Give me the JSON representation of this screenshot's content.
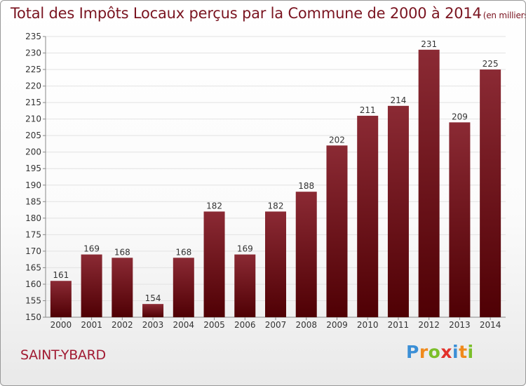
{
  "title": "Total des Impôts Locaux perçus par la Commune de 2000 à 2014",
  "title_unit": "(en milliers d'€)",
  "commune": "SAINT-YBARD",
  "logo": {
    "letters": [
      "P",
      "r",
      "o",
      "x",
      "i",
      "t",
      "i"
    ],
    "colors": [
      "#3b8fd6",
      "#f08a1c",
      "#7bbf2a",
      "#e2312b",
      "#3b8fd6",
      "#f08a1c",
      "#7bbf2a"
    ]
  },
  "colors": {
    "bar_top": "#8b2a34",
    "bar_bottom": "#4f0004",
    "title": "#7a1420",
    "commune": "#a11a32"
  },
  "chart_data": {
    "type": "bar",
    "categories": [
      "2000",
      "2001",
      "2002",
      "2003",
      "2004",
      "2005",
      "2006",
      "2007",
      "2008",
      "2009",
      "2010",
      "2011",
      "2012",
      "2013",
      "2014"
    ],
    "values": [
      161,
      169,
      168,
      154,
      168,
      182,
      169,
      182,
      188,
      202,
      211,
      214,
      231,
      209,
      225
    ],
    "ylim": [
      150,
      235
    ],
    "yticks": [
      150,
      155,
      160,
      165,
      170,
      175,
      180,
      185,
      190,
      195,
      200,
      205,
      210,
      215,
      220,
      225,
      230,
      235
    ],
    "grid": true,
    "data_labels": true
  }
}
